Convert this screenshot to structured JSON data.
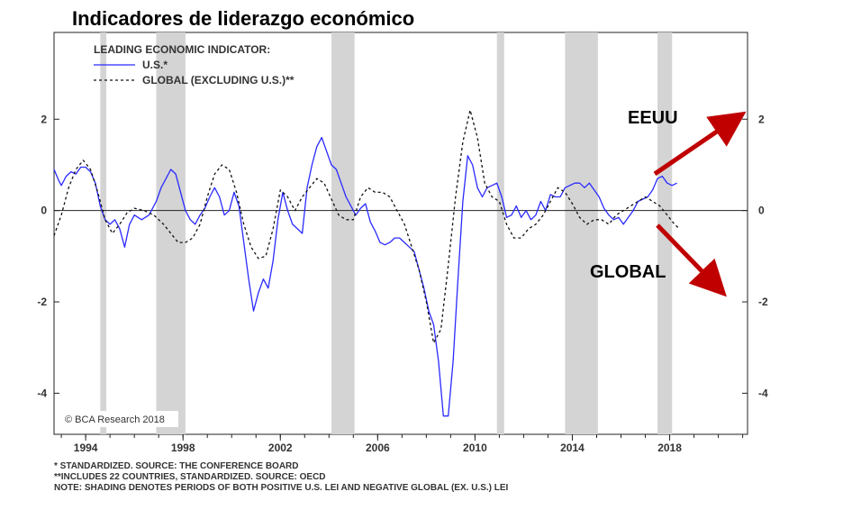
{
  "chart_data": {
    "type": "line",
    "title": "Indicadores de liderazgo económico",
    "legend_title": "LEADING ECONOMIC INDICATOR:",
    "legend_placement": "top-left",
    "xlim": [
      1992.7,
      2021.2
    ],
    "ylim": [
      -4.9,
      3.9
    ],
    "x_ticks": [
      "1994",
      "1998",
      "2002",
      "2006",
      "2010",
      "2014",
      "2018"
    ],
    "x_tick_values": [
      1994,
      1998,
      2002,
      2006,
      2010,
      2014,
      2018
    ],
    "y_ticks_left": [
      "2",
      "0",
      "-2",
      "-4"
    ],
    "y_ticks_right": [
      "2",
      "0",
      "-2",
      "-4"
    ],
    "y_tick_values": [
      2,
      0,
      -2,
      -4
    ],
    "shaded_periods": [
      [
        1994.6,
        1994.85
      ],
      [
        1996.9,
        1998.1
      ],
      [
        2004.1,
        2005.05
      ],
      [
        2010.9,
        2011.2
      ],
      [
        2013.7,
        2015.05
      ],
      [
        2017.5,
        2018.1
      ]
    ],
    "series": [
      {
        "name": "U.S.*",
        "style": "solid",
        "color": "#2a2aff",
        "x": [
          1992.7,
          1992.9,
          1993.0,
          1993.2,
          1993.4,
          1993.6,
          1993.8,
          1994.0,
          1994.2,
          1994.4,
          1994.6,
          1994.8,
          1995.0,
          1995.2,
          1995.4,
          1995.6,
          1995.8,
          1996.0,
          1996.3,
          1996.6,
          1996.9,
          1997.1,
          1997.3,
          1997.5,
          1997.7,
          1997.9,
          1998.1,
          1998.3,
          1998.5,
          1998.7,
          1998.9,
          1999.1,
          1999.3,
          1999.5,
          1999.7,
          1999.9,
          2000.1,
          2000.3,
          2000.5,
          2000.7,
          2000.9,
          2001.1,
          2001.3,
          2001.5,
          2001.7,
          2001.9,
          2002.1,
          2002.3,
          2002.5,
          2002.7,
          2002.9,
          2003.1,
          2003.3,
          2003.5,
          2003.7,
          2003.9,
          2004.1,
          2004.3,
          2004.5,
          2004.7,
          2004.9,
          2005.1,
          2005.3,
          2005.5,
          2005.7,
          2005.9,
          2006.1,
          2006.3,
          2006.5,
          2006.7,
          2006.9,
          2007.1,
          2007.3,
          2007.5,
          2007.7,
          2007.9,
          2008.1,
          2008.3,
          2008.5,
          2008.7,
          2008.9,
          2009.1,
          2009.3,
          2009.5,
          2009.7,
          2009.9,
          2010.1,
          2010.3,
          2010.5,
          2010.7,
          2010.9,
          2011.1,
          2011.3,
          2011.5,
          2011.7,
          2011.9,
          2012.1,
          2012.3,
          2012.5,
          2012.7,
          2012.9,
          2013.1,
          2013.3,
          2013.5,
          2013.7,
          2013.9,
          2014.1,
          2014.3,
          2014.5,
          2014.7,
          2014.9,
          2015.1,
          2015.3,
          2015.5,
          2015.7,
          2015.9,
          2016.1,
          2016.3,
          2016.5,
          2016.7,
          2016.9,
          2017.1,
          2017.3,
          2017.5,
          2017.7,
          2017.9,
          2018.1,
          2018.3
        ],
        "values": [
          0.9,
          0.65,
          0.55,
          0.75,
          0.85,
          0.8,
          0.95,
          0.95,
          0.85,
          0.6,
          0.1,
          -0.2,
          -0.3,
          -0.2,
          -0.4,
          -0.8,
          -0.3,
          -0.1,
          -0.2,
          -0.1,
          0.2,
          0.5,
          0.7,
          0.9,
          0.8,
          0.4,
          0.0,
          -0.2,
          -0.3,
          -0.1,
          0.05,
          0.3,
          0.5,
          0.3,
          -0.1,
          0.0,
          0.4,
          0.1,
          -0.7,
          -1.5,
          -2.2,
          -1.8,
          -1.5,
          -1.7,
          -1.1,
          -0.2,
          0.4,
          0.0,
          -0.3,
          -0.4,
          -0.5,
          0.5,
          1.0,
          1.4,
          1.6,
          1.3,
          1.0,
          0.9,
          0.6,
          0.3,
          0.1,
          -0.1,
          0.05,
          0.15,
          -0.25,
          -0.45,
          -0.7,
          -0.75,
          -0.7,
          -0.6,
          -0.6,
          -0.7,
          -0.8,
          -0.9,
          -1.3,
          -1.7,
          -2.2,
          -2.5,
          -3.3,
          -4.5,
          -4.5,
          -3.3,
          -1.5,
          0.2,
          1.2,
          1.0,
          0.5,
          0.3,
          0.5,
          0.55,
          0.6,
          0.3,
          -0.15,
          -0.1,
          0.1,
          -0.15,
          0.0,
          -0.2,
          -0.1,
          0.2,
          0.0,
          0.35,
          0.3,
          0.3,
          0.5,
          0.55,
          0.6,
          0.6,
          0.5,
          0.6,
          0.45,
          0.3,
          0.05,
          -0.1,
          -0.2,
          -0.15,
          -0.3,
          -0.15,
          0.0,
          0.2,
          0.25,
          0.3,
          0.45,
          0.7,
          0.75,
          0.6,
          0.55,
          0.6
        ]
      },
      {
        "name": "GLOBAL (EXCLUDING U.S.)**",
        "style": "dashed",
        "color": "#111111",
        "x": [
          1992.7,
          1993.0,
          1993.3,
          1993.6,
          1993.9,
          1994.2,
          1994.5,
          1994.8,
          1995.1,
          1995.4,
          1995.7,
          1996.0,
          1996.4,
          1996.8,
          1997.2,
          1997.5,
          1997.8,
          1998.1,
          1998.4,
          1998.7,
          1999.0,
          1999.3,
          1999.6,
          1999.9,
          2000.2,
          2000.5,
          2000.8,
          2001.1,
          2001.4,
          2001.7,
          2002.0,
          2002.3,
          2002.6,
          2002.9,
          2003.2,
          2003.5,
          2003.8,
          2004.1,
          2004.4,
          2004.7,
          2005.0,
          2005.3,
          2005.6,
          2005.9,
          2006.2,
          2006.5,
          2006.8,
          2007.1,
          2007.4,
          2007.7,
          2008.0,
          2008.3,
          2008.6,
          2008.9,
          2009.2,
          2009.5,
          2009.8,
          2010.1,
          2010.4,
          2010.7,
          2011.0,
          2011.3,
          2011.6,
          2011.9,
          2012.2,
          2012.5,
          2012.8,
          2013.1,
          2013.4,
          2013.7,
          2014.0,
          2014.3,
          2014.6,
          2014.9,
          2015.2,
          2015.5,
          2015.8,
          2016.1,
          2016.4,
          2016.7,
          2017.0,
          2017.3,
          2017.6,
          2017.9,
          2018.2,
          2018.4
        ],
        "values": [
          -0.55,
          -0.1,
          0.5,
          0.9,
          1.1,
          0.9,
          0.4,
          -0.2,
          -0.5,
          -0.3,
          -0.05,
          0.05,
          0.0,
          -0.1,
          -0.3,
          -0.5,
          -0.7,
          -0.7,
          -0.6,
          -0.3,
          0.3,
          0.8,
          1.0,
          0.9,
          0.4,
          -0.3,
          -0.8,
          -1.05,
          -1.0,
          -0.4,
          0.45,
          0.3,
          0.0,
          0.3,
          0.5,
          0.7,
          0.6,
          0.25,
          -0.1,
          -0.2,
          -0.2,
          0.3,
          0.5,
          0.4,
          0.4,
          0.3,
          0.0,
          -0.3,
          -0.8,
          -1.3,
          -2.0,
          -2.9,
          -2.6,
          -1.2,
          0.3,
          1.5,
          2.2,
          1.6,
          0.6,
          0.3,
          0.2,
          -0.3,
          -0.6,
          -0.6,
          -0.4,
          -0.3,
          -0.1,
          0.2,
          0.5,
          0.4,
          0.15,
          -0.15,
          -0.3,
          -0.2,
          -0.2,
          -0.3,
          -0.1,
          0.0,
          0.1,
          0.2,
          0.3,
          0.2,
          0.1,
          -0.1,
          -0.3,
          -0.4
        ]
      }
    ],
    "annotations": {
      "us_label": "EEUU",
      "global_label": "GLOBAL",
      "arrow_up_color": "#c00000",
      "arrow_down_color": "#c00000"
    },
    "credit": "© BCA Research 2018"
  },
  "footnotes": {
    "line1": "* STANDARDIZED. SOURCE: THE CONFERENCE BOARD",
    "line2": "**INCLUDES 22 COUNTRIES, STANDARDIZED. SOURCE: OECD",
    "line3": "NOTE: SHADING DENOTES PERIODS OF BOTH POSITIVE U.S. LEI AND NEGATIVE GLOBAL (EX. U.S.) LEI"
  }
}
